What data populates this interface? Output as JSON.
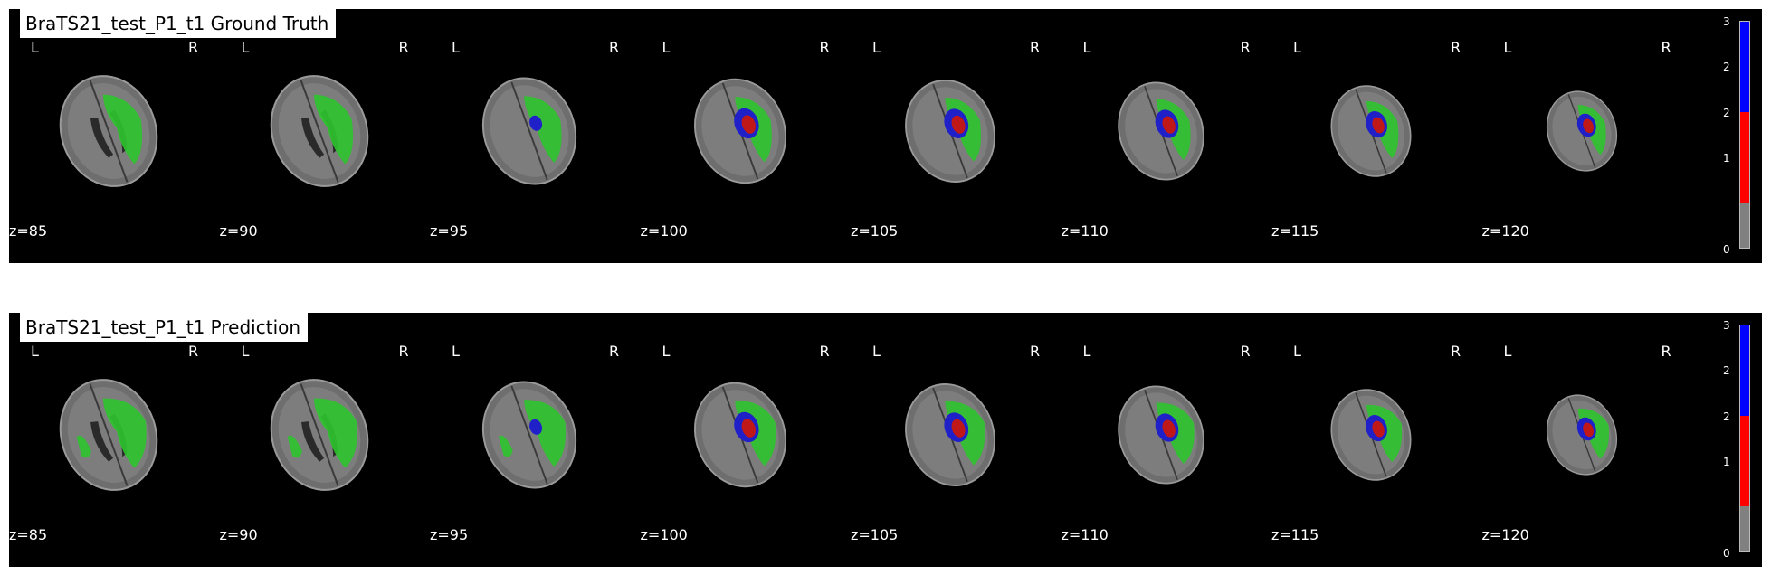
{
  "panels": [
    {
      "title": "BraTS21_test_P1_t1 Ground Truth"
    },
    {
      "title": "BraTS21_test_P1_t1 Prediction"
    }
  ],
  "orientation": {
    "left": "L",
    "right": "R"
  },
  "slices": [
    "z=85",
    "z=90",
    "z=95",
    "z=100",
    "z=105",
    "z=110",
    "z=115",
    "z=120"
  ],
  "colorbar": {
    "ticks": [
      "3",
      "2",
      "2",
      "1",
      "0"
    ],
    "segments": [
      {
        "value_range": [
          2,
          3
        ],
        "color": "#0000ff"
      },
      {
        "value_range": [
          1,
          2
        ],
        "color": "#ff0000"
      },
      {
        "value_range": [
          0,
          1
        ],
        "color": "#808080"
      }
    ]
  },
  "label_colors": {
    "edema": "#2ec42e",
    "enhancing": "#2020c8",
    "necrosis": "#c01818"
  }
}
